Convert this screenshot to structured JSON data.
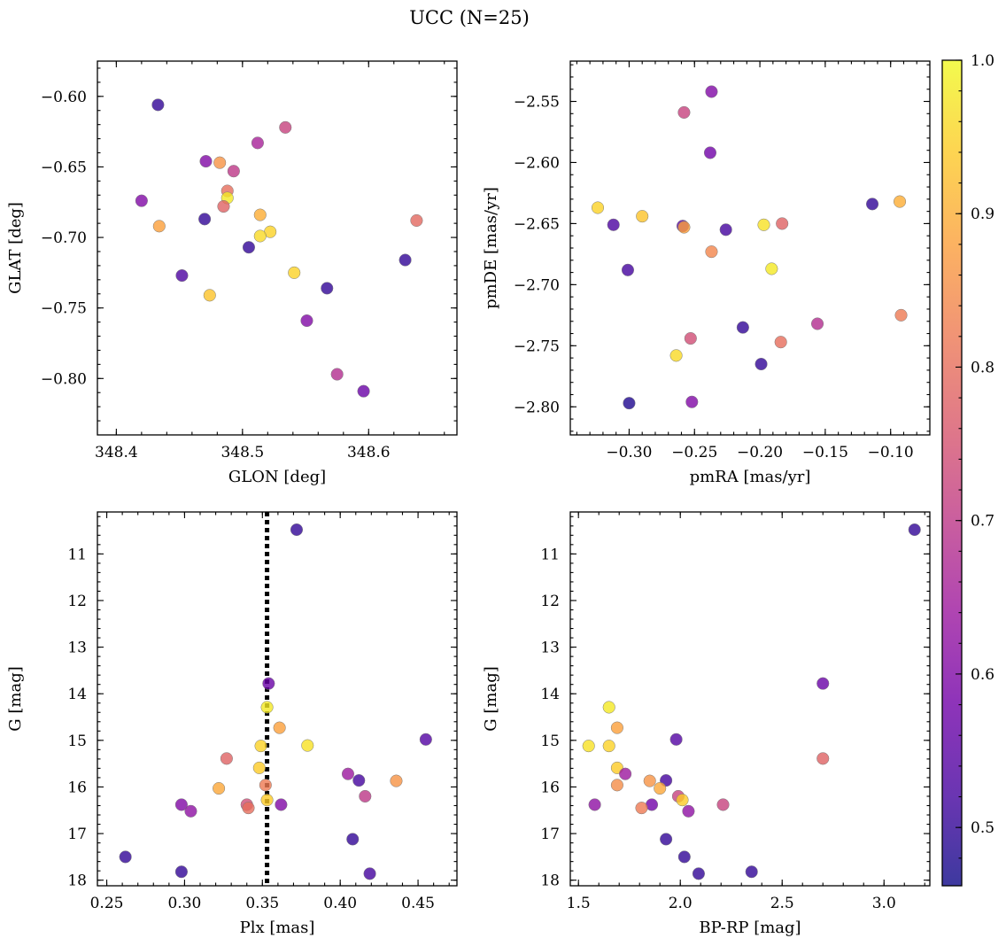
{
  "figure": {
    "title": "UCC (N=25)"
  },
  "colorbar": {
    "min": 0.462,
    "max": 1.0,
    "ticks": [
      0.5,
      0.6,
      0.7,
      0.8,
      0.9,
      1.0
    ],
    "tick_labels": [
      "0.5",
      "0.6",
      "0.7",
      "0.8",
      "0.9",
      "1.0"
    ],
    "colormap": "plasma",
    "stops": [
      "#0d0887",
      "#46039f",
      "#7201a8",
      "#9c179e",
      "#bd3786",
      "#d8576b",
      "#ed7953",
      "#fb9f3a",
      "#fdca26",
      "#f0f921"
    ],
    "alpha": 0.8
  },
  "chart_data": [
    {
      "type": "scatter",
      "title": "",
      "xlabel": "GLON [deg]",
      "ylabel": "GLAT [deg]",
      "xlim": [
        348.385,
        348.67
      ],
      "ylim": [
        -0.84,
        -0.575
      ],
      "y_inverted": false,
      "xticks": [
        348.4,
        348.5,
        348.6
      ],
      "xtick_labels": [
        "348.4",
        "348.5",
        "348.6"
      ],
      "yticks": [
        -0.8,
        -0.75,
        -0.7,
        -0.65,
        -0.6
      ],
      "ytick_labels": [
        "−0.80",
        "−0.75",
        "−0.70",
        "−0.65",
        "−0.60"
      ],
      "points": [
        {
          "x": 348.433,
          "y": -0.606,
          "c": 0.5
        },
        {
          "x": 348.534,
          "y": -0.622,
          "c": 0.72
        },
        {
          "x": 348.512,
          "y": -0.633,
          "c": 0.66
        },
        {
          "x": 348.471,
          "y": -0.646,
          "c": 0.6
        },
        {
          "x": 348.482,
          "y": -0.647,
          "c": 0.86
        },
        {
          "x": 348.493,
          "y": -0.653,
          "c": 0.7
        },
        {
          "x": 348.488,
          "y": -0.667,
          "c": 0.8
        },
        {
          "x": 348.488,
          "y": -0.672,
          "c": 0.98
        },
        {
          "x": 348.42,
          "y": -0.674,
          "c": 0.6
        },
        {
          "x": 348.485,
          "y": -0.678,
          "c": 0.78
        },
        {
          "x": 348.514,
          "y": -0.684,
          "c": 0.9
        },
        {
          "x": 348.47,
          "y": -0.687,
          "c": 0.5
        },
        {
          "x": 348.638,
          "y": -0.688,
          "c": 0.79
        },
        {
          "x": 348.434,
          "y": -0.692,
          "c": 0.88
        },
        {
          "x": 348.522,
          "y": -0.696,
          "c": 0.95
        },
        {
          "x": 348.514,
          "y": -0.699,
          "c": 0.96
        },
        {
          "x": 348.505,
          "y": -0.707,
          "c": 0.5
        },
        {
          "x": 348.629,
          "y": -0.716,
          "c": 0.5
        },
        {
          "x": 348.541,
          "y": -0.725,
          "c": 0.95
        },
        {
          "x": 348.452,
          "y": -0.727,
          "c": 0.53
        },
        {
          "x": 348.567,
          "y": -0.736,
          "c": 0.5
        },
        {
          "x": 348.474,
          "y": -0.741,
          "c": 0.93
        },
        {
          "x": 348.551,
          "y": -0.759,
          "c": 0.6
        },
        {
          "x": 348.575,
          "y": -0.797,
          "c": 0.68
        },
        {
          "x": 348.596,
          "y": -0.809,
          "c": 0.57
        }
      ]
    },
    {
      "type": "scatter",
      "title": "",
      "xlabel": "pmRA [mas/yr]",
      "ylabel": "pmDE [mas/yr]",
      "xlim": [
        -0.345,
        -0.07
      ],
      "ylim": [
        -2.823,
        -2.517
      ],
      "y_inverted": false,
      "xticks": [
        -0.3,
        -0.25,
        -0.2,
        -0.15,
        -0.1
      ],
      "xtick_labels": [
        "−0.30",
        "−0.25",
        "−0.20",
        "−0.15",
        "−0.10"
      ],
      "yticks": [
        -2.8,
        -2.75,
        -2.7,
        -2.65,
        -2.6,
        -2.55
      ],
      "ytick_labels": [
        "−2.80",
        "−2.75",
        "−2.70",
        "−2.65",
        "−2.60",
        "−2.55"
      ],
      "points": [
        {
          "x": -0.237,
          "y": -2.542,
          "c": 0.6
        },
        {
          "x": -0.258,
          "y": -2.559,
          "c": 0.72
        },
        {
          "x": -0.238,
          "y": -2.592,
          "c": 0.58
        },
        {
          "x": -0.324,
          "y": -2.637,
          "c": 0.95
        },
        {
          "x": -0.114,
          "y": -2.634,
          "c": 0.5
        },
        {
          "x": -0.093,
          "y": -2.632,
          "c": 0.9
        },
        {
          "x": -0.29,
          "y": -2.644,
          "c": 0.93
        },
        {
          "x": -0.312,
          "y": -2.651,
          "c": 0.53
        },
        {
          "x": -0.183,
          "y": -2.65,
          "c": 0.78
        },
        {
          "x": -0.197,
          "y": -2.651,
          "c": 0.97
        },
        {
          "x": -0.259,
          "y": -2.652,
          "c": 0.55
        },
        {
          "x": -0.258,
          "y": -2.653,
          "c": 0.88
        },
        {
          "x": -0.226,
          "y": -2.655,
          "c": 0.52
        },
        {
          "x": -0.237,
          "y": -2.673,
          "c": 0.84
        },
        {
          "x": -0.191,
          "y": -2.687,
          "c": 0.98
        },
        {
          "x": -0.301,
          "y": -2.688,
          "c": 0.52
        },
        {
          "x": -0.092,
          "y": -2.725,
          "c": 0.82
        },
        {
          "x": -0.156,
          "y": -2.732,
          "c": 0.68
        },
        {
          "x": -0.213,
          "y": -2.735,
          "c": 0.5
        },
        {
          "x": -0.253,
          "y": -2.744,
          "c": 0.74
        },
        {
          "x": -0.184,
          "y": -2.747,
          "c": 0.8
        },
        {
          "x": -0.264,
          "y": -2.758,
          "c": 0.96
        },
        {
          "x": -0.199,
          "y": -2.765,
          "c": 0.5
        },
        {
          "x": -0.3,
          "y": -2.797,
          "c": 0.48
        },
        {
          "x": -0.252,
          "y": -2.796,
          "c": 0.6
        }
      ]
    },
    {
      "type": "scatter",
      "title": "",
      "xlabel": "Plx [mas]",
      "ylabel": "G [mag]",
      "xlim": [
        0.244,
        0.475
      ],
      "ylim": [
        18.12,
        10.1
      ],
      "y_inverted": true,
      "xticks": [
        0.25,
        0.3,
        0.35,
        0.4,
        0.45
      ],
      "xtick_labels": [
        "0.25",
        "0.30",
        "0.35",
        "0.40",
        "0.45"
      ],
      "yticks": [
        11,
        12,
        13,
        14,
        15,
        16,
        17,
        18
      ],
      "ytick_labels": [
        "11",
        "12",
        "13",
        "14",
        "15",
        "16",
        "17",
        "18"
      ],
      "vline": 0.353,
      "points": [
        {
          "x": 0.372,
          "y": 10.48,
          "c": 0.5
        },
        {
          "x": 0.354,
          "y": 13.78,
          "c": 0.57
        },
        {
          "x": 0.353,
          "y": 14.29,
          "c": 0.98
        },
        {
          "x": 0.361,
          "y": 14.73,
          "c": 0.88
        },
        {
          "x": 0.455,
          "y": 14.98,
          "c": 0.54
        },
        {
          "x": 0.349,
          "y": 15.12,
          "c": 0.95
        },
        {
          "x": 0.379,
          "y": 15.11,
          "c": 0.97
        },
        {
          "x": 0.327,
          "y": 15.39,
          "c": 0.78
        },
        {
          "x": 0.348,
          "y": 15.59,
          "c": 0.94
        },
        {
          "x": 0.405,
          "y": 15.72,
          "c": 0.64
        },
        {
          "x": 0.412,
          "y": 15.86,
          "c": 0.52
        },
        {
          "x": 0.436,
          "y": 15.87,
          "c": 0.86
        },
        {
          "x": 0.352,
          "y": 15.96,
          "c": 0.82
        },
        {
          "x": 0.322,
          "y": 16.03,
          "c": 0.89
        },
        {
          "x": 0.416,
          "y": 16.2,
          "c": 0.7
        },
        {
          "x": 0.353,
          "y": 16.28,
          "c": 0.94
        },
        {
          "x": 0.298,
          "y": 16.38,
          "c": 0.6
        },
        {
          "x": 0.34,
          "y": 16.38,
          "c": 0.74
        },
        {
          "x": 0.362,
          "y": 16.38,
          "c": 0.6
        },
        {
          "x": 0.341,
          "y": 16.45,
          "c": 0.8
        },
        {
          "x": 0.304,
          "y": 16.52,
          "c": 0.62
        },
        {
          "x": 0.408,
          "y": 17.12,
          "c": 0.5
        },
        {
          "x": 0.262,
          "y": 17.5,
          "c": 0.5
        },
        {
          "x": 0.298,
          "y": 17.82,
          "c": 0.5
        },
        {
          "x": 0.419,
          "y": 17.86,
          "c": 0.52
        }
      ]
    },
    {
      "type": "scatter",
      "title": "",
      "xlabel": "BP-RP [mag]",
      "ylabel": "G [mag]",
      "xlim": [
        1.46,
        3.225
      ],
      "ylim": [
        18.12,
        10.1
      ],
      "y_inverted": true,
      "xticks": [
        1.5,
        2.0,
        2.5,
        3.0
      ],
      "xtick_labels": [
        "1.5",
        "2.0",
        "2.5",
        "3.0"
      ],
      "yticks": [
        11,
        12,
        13,
        14,
        15,
        16,
        17,
        18
      ],
      "ytick_labels": [
        "11",
        "12",
        "13",
        "14",
        "15",
        "16",
        "17",
        "18"
      ],
      "points": [
        {
          "x": 3.15,
          "y": 10.48,
          "c": 0.5
        },
        {
          "x": 2.7,
          "y": 13.78,
          "c": 0.57
        },
        {
          "x": 1.65,
          "y": 14.29,
          "c": 0.98
        },
        {
          "x": 1.69,
          "y": 14.73,
          "c": 0.88
        },
        {
          "x": 1.98,
          "y": 14.98,
          "c": 0.54
        },
        {
          "x": 1.55,
          "y": 15.12,
          "c": 0.97
        },
        {
          "x": 1.65,
          "y": 15.12,
          "c": 0.95
        },
        {
          "x": 2.7,
          "y": 15.39,
          "c": 0.78
        },
        {
          "x": 1.69,
          "y": 15.59,
          "c": 0.94
        },
        {
          "x": 1.73,
          "y": 15.72,
          "c": 0.64
        },
        {
          "x": 1.93,
          "y": 15.86,
          "c": 0.52
        },
        {
          "x": 1.85,
          "y": 15.87,
          "c": 0.86
        },
        {
          "x": 1.69,
          "y": 15.96,
          "c": 0.85
        },
        {
          "x": 1.9,
          "y": 16.03,
          "c": 0.89
        },
        {
          "x": 1.99,
          "y": 16.2,
          "c": 0.72
        },
        {
          "x": 2.01,
          "y": 16.28,
          "c": 0.94
        },
        {
          "x": 1.58,
          "y": 16.38,
          "c": 0.62
        },
        {
          "x": 1.86,
          "y": 16.38,
          "c": 0.58
        },
        {
          "x": 2.21,
          "y": 16.38,
          "c": 0.72
        },
        {
          "x": 1.81,
          "y": 16.45,
          "c": 0.82
        },
        {
          "x": 2.04,
          "y": 16.52,
          "c": 0.62
        },
        {
          "x": 1.93,
          "y": 17.12,
          "c": 0.5
        },
        {
          "x": 2.02,
          "y": 17.5,
          "c": 0.5
        },
        {
          "x": 2.09,
          "y": 17.86,
          "c": 0.5
        },
        {
          "x": 2.35,
          "y": 17.82,
          "c": 0.5
        }
      ]
    }
  ]
}
